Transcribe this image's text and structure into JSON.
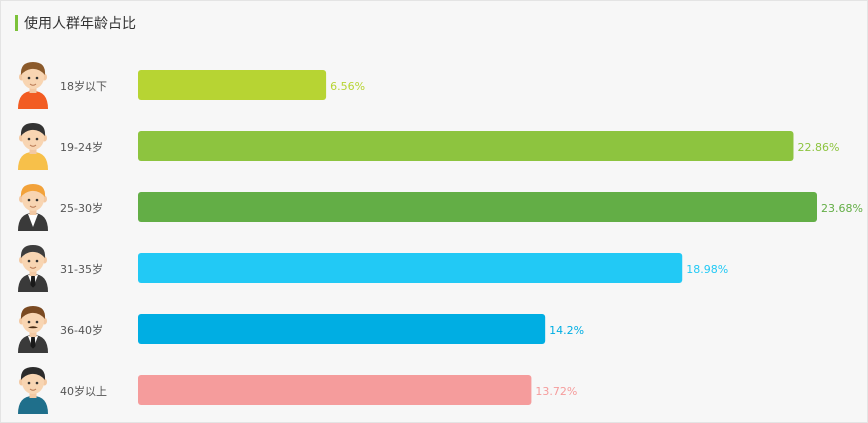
{
  "header": {
    "title": "使用人群年龄占比",
    "accent_color": "#7cc23a"
  },
  "chart_data": {
    "type": "bar",
    "orientation": "horizontal",
    "title": "使用人群年龄占比",
    "categories": [
      "18岁以下",
      "19-24岁",
      "25-30岁",
      "31-35岁",
      "36-40岁",
      "40岁以上"
    ],
    "values": [
      6.56,
      22.86,
      23.68,
      18.98,
      14.2,
      13.72
    ],
    "value_labels": [
      "6.56%",
      "22.86%",
      "23.68%",
      "18.98%",
      "14.2%",
      "13.72%"
    ],
    "unit": "%",
    "xlim": [
      0,
      23.68
    ],
    "grid": false,
    "legend": "none",
    "colors": [
      "#b7d433",
      "#8dc43f",
      "#63ae46",
      "#22c9f5",
      "#00aee3",
      "#f59c9c"
    ],
    "icons": [
      "boy-orange-shirt-avatar",
      "boy-yellow-shirt-avatar",
      "man-blond-suit-avatar",
      "man-dark-suit-avatar",
      "man-mustache-suit-avatar",
      "man-blue-shirt-avatar"
    ]
  }
}
